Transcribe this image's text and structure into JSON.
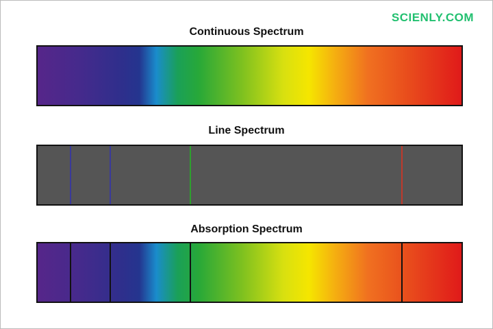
{
  "logo": "SCIENLY.COM",
  "panels": [
    {
      "title": "Continuous Spectrum",
      "type": "continuous"
    },
    {
      "title": "Line Spectrum",
      "type": "emission",
      "lines": [
        {
          "position": 0.077,
          "color": "#3a3a9a"
        },
        {
          "position": 0.172,
          "color": "#3a3a9a"
        },
        {
          "position": 0.361,
          "color": "#2ea02e"
        },
        {
          "position": 0.86,
          "color": "#c0392b"
        }
      ]
    },
    {
      "title": "Absorption Spectrum",
      "type": "absorption",
      "lines": [
        {
          "position": 0.077,
          "color": "#111111"
        },
        {
          "position": 0.172,
          "color": "#111111"
        },
        {
          "position": 0.361,
          "color": "#111111"
        },
        {
          "position": 0.86,
          "color": "#111111"
        }
      ]
    }
  ]
}
